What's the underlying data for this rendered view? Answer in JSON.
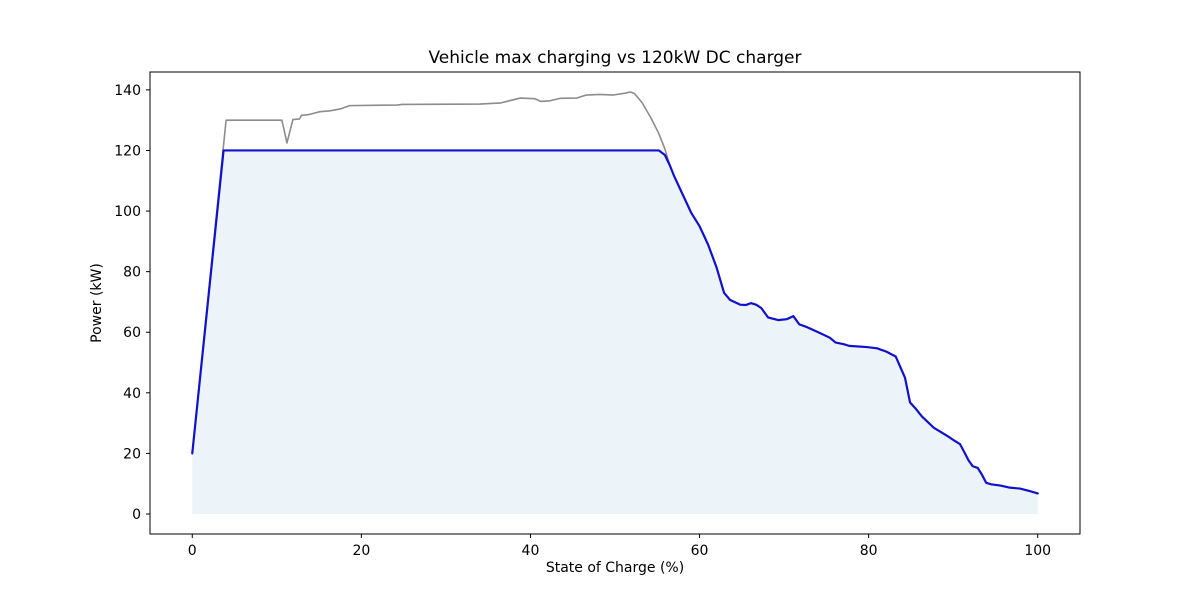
{
  "chart_data": {
    "type": "line",
    "title": "Vehicle max charging vs 120kW DC charger",
    "xlabel": "State of Charge (%)",
    "ylabel": "Power (kW)",
    "xlim": [
      -5,
      105
    ],
    "ylim": [
      -6.6,
      145.9
    ],
    "xticks": [
      0,
      20,
      40,
      60,
      80,
      100
    ],
    "yticks": [
      0,
      20,
      40,
      60,
      80,
      100,
      120,
      140
    ],
    "grid": false,
    "legend": "none",
    "colors": {
      "vehicle_line": "#8c8c8c",
      "delivered_line": "#1111cd",
      "delivered_fill": "#ecf4f9",
      "frame": "#000000"
    },
    "series": [
      {
        "name": "vehicle-max-charging-curve",
        "color": "#8c8c8c",
        "line_width": 1.6,
        "points": [
          [
            0,
            20
          ],
          [
            4,
            130
          ],
          [
            10.6,
            130
          ],
          [
            11.2,
            122.5
          ],
          [
            11.9,
            130.2
          ],
          [
            12.7,
            130.4
          ],
          [
            12.9,
            131.6
          ],
          [
            13.7,
            131.8
          ],
          [
            15.1,
            132.8
          ],
          [
            16.3,
            133.1
          ],
          [
            17.5,
            133.7
          ],
          [
            18.6,
            134.8
          ],
          [
            24.2,
            135
          ],
          [
            24.8,
            135.2
          ],
          [
            34,
            135.3
          ],
          [
            36.5,
            135.7
          ],
          [
            38.8,
            137.3
          ],
          [
            40.5,
            137.1
          ],
          [
            41.2,
            136.2
          ],
          [
            42.3,
            136.4
          ],
          [
            43.5,
            137.2
          ],
          [
            45.5,
            137.3
          ],
          [
            46.6,
            138.3
          ],
          [
            48.2,
            138.5
          ],
          [
            49.8,
            138.3
          ],
          [
            51.2,
            138.9
          ],
          [
            51.8,
            139.3
          ],
          [
            52.3,
            138.8
          ],
          [
            53.2,
            135.8
          ],
          [
            54.2,
            131
          ],
          [
            55.2,
            125.5
          ],
          [
            55.9,
            120.5
          ],
          [
            56.5,
            115
          ],
          [
            57,
            111.5
          ],
          [
            58,
            105.5
          ],
          [
            59,
            99.5
          ],
          [
            60,
            95
          ],
          [
            61,
            89
          ],
          [
            62,
            81.5
          ],
          [
            62.9,
            73
          ],
          [
            63.6,
            70.7
          ],
          [
            64.8,
            69.1
          ],
          [
            65.5,
            69
          ],
          [
            66.1,
            69.6
          ],
          [
            66.7,
            69.1
          ],
          [
            67.3,
            68
          ],
          [
            68.1,
            64.9
          ],
          [
            69.3,
            64
          ],
          [
            70.3,
            64.3
          ],
          [
            71.1,
            65.3
          ],
          [
            71.8,
            62.6
          ],
          [
            72.7,
            61.7
          ],
          [
            74.2,
            59.8
          ],
          [
            75.4,
            58.2
          ],
          [
            76.1,
            56.6
          ],
          [
            77,
            56.1
          ],
          [
            77.7,
            55.5
          ],
          [
            79.8,
            55.1
          ],
          [
            81,
            54.7
          ],
          [
            82.1,
            53.6
          ],
          [
            83.2,
            52
          ],
          [
            84.3,
            45
          ],
          [
            84.9,
            36.8
          ],
          [
            85.5,
            35
          ],
          [
            86.3,
            32.2
          ],
          [
            87.7,
            28.5
          ],
          [
            88.4,
            27.3
          ],
          [
            89.4,
            25.6
          ],
          [
            90.2,
            24.1
          ],
          [
            90.8,
            23.1
          ],
          [
            91.3,
            20.5
          ],
          [
            91.8,
            17.8
          ],
          [
            92.3,
            15.8
          ],
          [
            92.9,
            15.2
          ],
          [
            93.4,
            13
          ],
          [
            93.9,
            10.3
          ],
          [
            94.5,
            9.8
          ],
          [
            95.6,
            9.4
          ],
          [
            96.7,
            8.7
          ],
          [
            97.9,
            8.4
          ],
          [
            99,
            7.6
          ],
          [
            100,
            6.8
          ]
        ]
      },
      {
        "name": "delivered-power-120kW-cap",
        "color": "#1111cd",
        "line_width": 2.2,
        "fill": "#ecf4f9",
        "fill_baseline": 0,
        "points": [
          [
            0,
            20
          ],
          [
            3.7,
            120
          ],
          [
            55.2,
            120
          ],
          [
            55.9,
            118.5
          ],
          [
            56.5,
            115
          ],
          [
            57,
            111.5
          ],
          [
            58,
            105.5
          ],
          [
            59,
            99.5
          ],
          [
            60,
            95
          ],
          [
            61,
            89
          ],
          [
            62,
            81.5
          ],
          [
            62.9,
            73
          ],
          [
            63.6,
            70.7
          ],
          [
            64.8,
            69.1
          ],
          [
            65.5,
            69
          ],
          [
            66.1,
            69.6
          ],
          [
            66.7,
            69.1
          ],
          [
            67.3,
            68
          ],
          [
            68.1,
            64.9
          ],
          [
            69.3,
            64
          ],
          [
            70.3,
            64.3
          ],
          [
            71.1,
            65.3
          ],
          [
            71.8,
            62.6
          ],
          [
            72.7,
            61.7
          ],
          [
            74.2,
            59.8
          ],
          [
            75.4,
            58.2
          ],
          [
            76.1,
            56.6
          ],
          [
            77,
            56.1
          ],
          [
            77.7,
            55.5
          ],
          [
            79.8,
            55.1
          ],
          [
            81,
            54.7
          ],
          [
            82.1,
            53.6
          ],
          [
            83.2,
            52
          ],
          [
            84.3,
            45
          ],
          [
            84.9,
            36.8
          ],
          [
            85.5,
            35
          ],
          [
            86.3,
            32.2
          ],
          [
            87.7,
            28.5
          ],
          [
            88.4,
            27.3
          ],
          [
            89.4,
            25.6
          ],
          [
            90.2,
            24.1
          ],
          [
            90.8,
            23.1
          ],
          [
            91.3,
            20.5
          ],
          [
            91.8,
            17.8
          ],
          [
            92.3,
            15.8
          ],
          [
            92.9,
            15.2
          ],
          [
            93.4,
            13
          ],
          [
            93.9,
            10.3
          ],
          [
            94.5,
            9.8
          ],
          [
            95.6,
            9.4
          ],
          [
            96.7,
            8.7
          ],
          [
            97.9,
            8.4
          ],
          [
            99,
            7.6
          ],
          [
            100,
            6.8
          ]
        ]
      }
    ]
  }
}
